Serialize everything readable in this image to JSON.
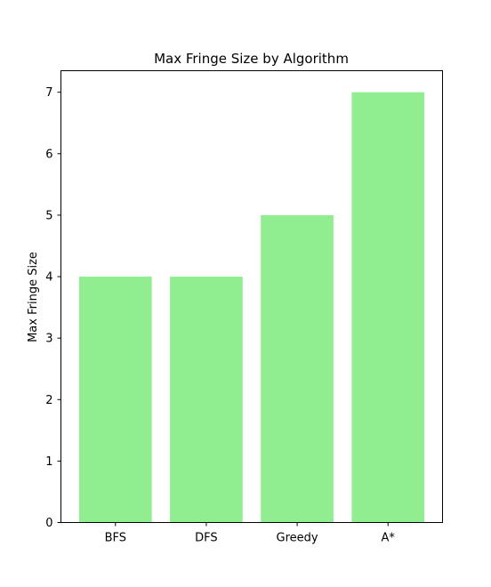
{
  "chart_data": {
    "type": "bar",
    "title": "Max Fringe Size by Algorithm",
    "xlabel": "",
    "ylabel": "Max Fringe Size",
    "categories": [
      "BFS",
      "DFS",
      "Greedy",
      "A*"
    ],
    "values": [
      4,
      4,
      5,
      7
    ],
    "ylim": [
      0,
      7.35
    ],
    "yticks": [
      "0",
      "1",
      "2",
      "3",
      "4",
      "5",
      "6",
      "7"
    ],
    "bar_color": "#90ee90",
    "grid": false,
    "legend": "none"
  }
}
